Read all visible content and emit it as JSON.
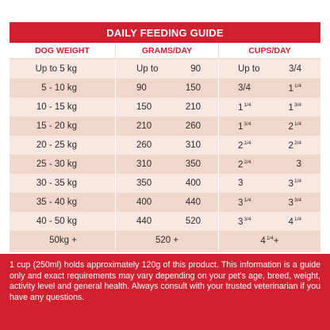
{
  "title": "DAILY FEEDING GUIDE",
  "headers": [
    "DOG WEIGHT",
    "GRAMS/DAY",
    "CUPS/DAY"
  ],
  "rows": [
    {
      "weight": "Up to 5 kg",
      "g_low": "Up to",
      "g_high": "90",
      "c_low": "Up to",
      "c_high": "3/4"
    },
    {
      "weight": "5 - 10 kg",
      "g_low": "90",
      "g_high": "150",
      "c_low": "3/4",
      "c_high_whole": "1",
      "c_high_frac": "1/4"
    },
    {
      "weight": "10 - 15 kg",
      "g_low": "150",
      "g_high": "210",
      "c_low_whole": "1",
      "c_low_frac": "1/4",
      "c_high_whole": "1",
      "c_high_frac": "3/4"
    },
    {
      "weight": "15 - 20 kg",
      "g_low": "210",
      "g_high": "260",
      "c_low_whole": "1",
      "c_low_frac": "3/4",
      "c_high_whole": "2",
      "c_high_frac": "1/4"
    },
    {
      "weight": "20 - 25 kg",
      "g_low": "260",
      "g_high": "310",
      "c_low_whole": "2",
      "c_low_frac": "1/4",
      "c_high_whole": "2",
      "c_high_frac": "2/4"
    },
    {
      "weight": "25 - 30 kg",
      "g_low": "310",
      "g_high": "350",
      "c_low_whole": "2",
      "c_low_frac": "2/4",
      "c_high": "3"
    },
    {
      "weight": "30 - 35 kg",
      "g_low": "350",
      "g_high": "400",
      "c_low": "3",
      "c_high_whole": "3",
      "c_high_frac": "1/4"
    },
    {
      "weight": "35 - 40 kg",
      "g_low": "400",
      "g_high": "440",
      "c_low_whole": "3",
      "c_low_frac": "1/4",
      "c_high_whole": "3",
      "c_high_frac": "3/4"
    },
    {
      "weight": "40 - 50 kg",
      "g_low": "440",
      "g_high": "520",
      "c_low_whole": "3",
      "c_low_frac": "3/4",
      "c_high_whole": "4",
      "c_high_frac": "1/4"
    }
  ],
  "last_row": {
    "weight": "50kg +",
    "grams": "520 +",
    "cups_whole": "4",
    "cups_frac": "1/4",
    "cups_suffix": "+"
  },
  "footer": "1 cup (250ml) holds approximately 120g of this product. This information is a guide only and exact requirements may vary depending on your pet's age, breed, weight, activity level and general health. Always consult with your trusted veterinarian if you have any questions.",
  "colors": {
    "accent": "#d1202f",
    "row_light": "#f8e8e1",
    "row_dark": "#f1d6cb"
  }
}
